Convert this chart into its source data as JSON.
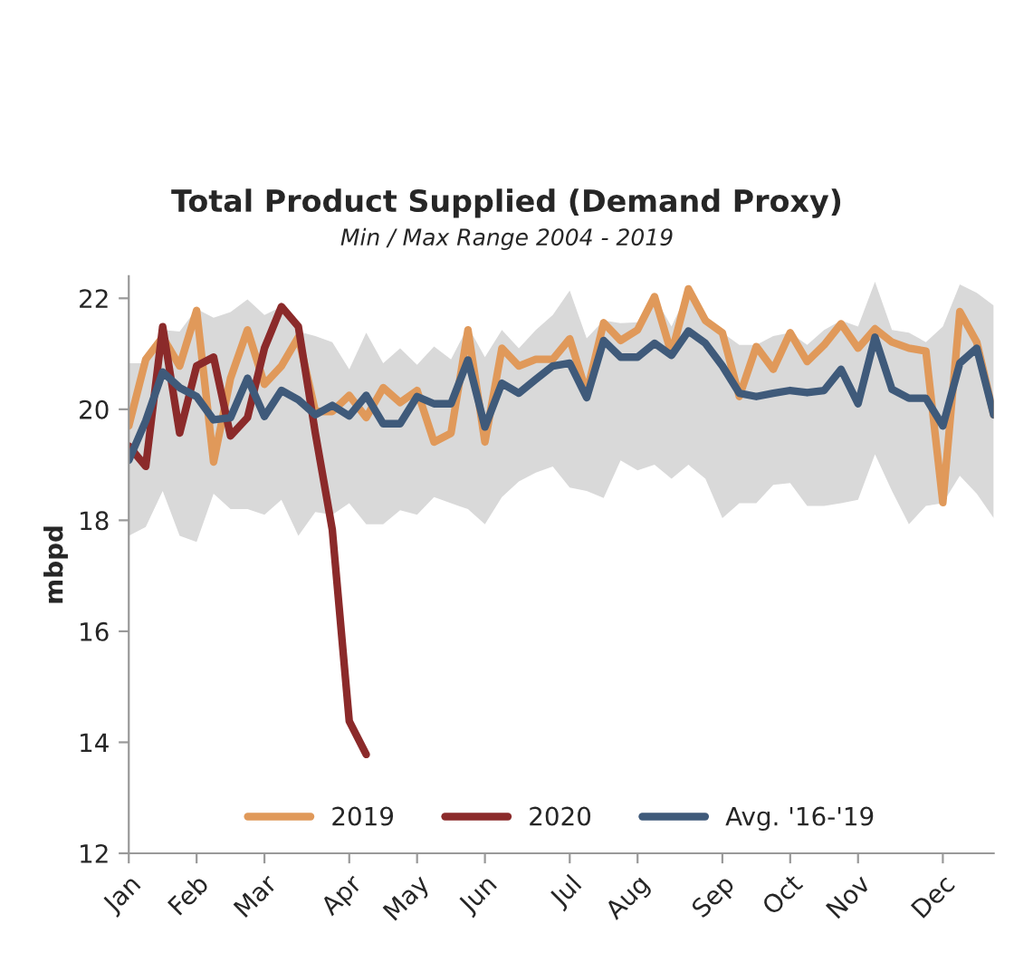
{
  "chart_data": {
    "type": "line",
    "title": "Total Product Supplied (Demand Proxy)",
    "subtitle": "Min / Max Range 2004 - 2019",
    "ylabel": "mbpd",
    "categories": [
      "Jan",
      null,
      null,
      null,
      "Feb",
      null,
      null,
      null,
      "Mar",
      null,
      null,
      null,
      null,
      "Apr",
      null,
      null,
      null,
      "May",
      null,
      null,
      null,
      "Jun",
      null,
      null,
      null,
      null,
      "Jul",
      null,
      null,
      null,
      "Aug",
      null,
      null,
      null,
      null,
      "Sep",
      null,
      null,
      null,
      "Oct",
      null,
      null,
      null,
      "Nov",
      null,
      null,
      null,
      null,
      "Dec",
      null,
      null,
      null
    ],
    "ylim": [
      12,
      22.4
    ],
    "yticks": [
      12,
      14,
      16,
      18,
      20,
      22
    ],
    "grid": false,
    "legend": "bottom",
    "series": [
      {
        "name": "2019",
        "color": "#e0995a",
        "values": [
          19.7,
          20.9,
          21.3,
          20.78,
          21.78,
          19.05,
          20.56,
          21.43,
          20.45,
          20.78,
          21.3,
          19.96,
          19.96,
          20.25,
          19.85,
          20.39,
          20.12,
          20.34,
          19.41,
          19.57,
          21.43,
          19.41,
          21.1,
          20.78,
          20.9,
          20.9,
          21.27,
          20.29,
          21.56,
          21.24,
          21.43,
          22.03,
          21.0,
          22.17,
          21.6,
          21.38,
          20.23,
          21.13,
          20.72,
          21.38,
          20.86,
          21.16,
          21.54,
          21.1,
          21.45,
          21.21,
          21.1,
          21.05,
          18.32,
          21.76,
          21.21,
          19.9
        ]
      },
      {
        "name": "2020",
        "color": "#8b2a2a",
        "values": [
          19.34,
          18.97,
          21.49,
          19.57,
          20.78,
          20.94,
          19.52,
          19.85,
          21.1,
          21.85,
          21.49,
          19.57,
          17.83,
          14.38,
          13.78,
          null,
          null,
          null,
          null,
          null,
          null,
          null,
          null,
          null,
          null,
          null,
          null,
          null,
          null,
          null,
          null,
          null,
          null,
          null,
          null,
          null,
          null,
          null,
          null,
          null,
          null,
          null,
          null,
          null,
          null,
          null,
          null,
          null,
          null,
          null,
          null,
          null
        ]
      },
      {
        "name": "Avg. '16-'19",
        "color": "#3f5a7a",
        "values": [
          19.08,
          19.79,
          20.67,
          20.39,
          20.23,
          19.81,
          19.85,
          20.56,
          19.87,
          20.34,
          20.17,
          19.9,
          20.07,
          19.88,
          20.25,
          19.74,
          19.74,
          20.23,
          20.1,
          20.1,
          20.89,
          19.68,
          20.47,
          20.29,
          20.54,
          20.78,
          20.83,
          20.21,
          21.24,
          20.94,
          20.94,
          21.19,
          20.97,
          21.41,
          21.19,
          20.78,
          20.29,
          20.23,
          20.29,
          20.34,
          20.3,
          20.34,
          20.72,
          20.1,
          21.3,
          20.36,
          20.2,
          20.2,
          19.7,
          20.83,
          21.1,
          19.9
        ],
        "upper": [
          20.83,
          20.83,
          21.43,
          21.4,
          21.81,
          21.65,
          21.75,
          21.98,
          21.7,
          21.85,
          21.4,
          21.32,
          21.21,
          20.72,
          21.38,
          20.83,
          21.1,
          20.8,
          21.13,
          20.9,
          21.49,
          20.94,
          21.43,
          21.1,
          21.43,
          21.7,
          22.14,
          21.28,
          21.6,
          21.55,
          21.57,
          22.03,
          21.49,
          22.14,
          21.7,
          21.38,
          21.16,
          21.16,
          21.32,
          21.38,
          21.16,
          21.43,
          21.6,
          21.49,
          22.3,
          21.43,
          21.38,
          21.21,
          21.49,
          22.25,
          22.1,
          21.87
        ],
        "lower": [
          17.72,
          17.88,
          18.53,
          17.72,
          17.61,
          18.48,
          18.2,
          18.2,
          18.1,
          18.37,
          17.72,
          18.15,
          18.1,
          18.31,
          17.93,
          17.93,
          18.18,
          18.1,
          18.42,
          18.31,
          18.2,
          17.93,
          18.42,
          18.7,
          18.86,
          18.97,
          18.59,
          18.53,
          18.4,
          19.08,
          18.9,
          19.0,
          18.75,
          19.0,
          18.75,
          18.04,
          18.31,
          18.31,
          18.64,
          18.67,
          18.26,
          18.26,
          18.31,
          18.37,
          19.19,
          18.53,
          17.93,
          18.26,
          18.31,
          18.8,
          18.48,
          18.04
        ]
      }
    ]
  }
}
